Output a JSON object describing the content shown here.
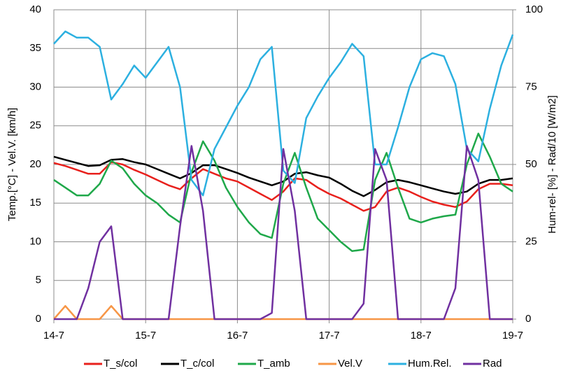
{
  "chart_data": {
    "type": "line",
    "xlabel": null,
    "ylabel": "Temp.[°C] - Vel.V. [km/h]",
    "y2label": "Hum-rel- [%] - Rad/10 [W/m2]",
    "x": [
      0,
      0.125,
      0.25,
      0.375,
      0.5,
      0.625,
      0.75,
      0.875,
      1,
      1.125,
      1.25,
      1.375,
      1.5,
      1.625,
      1.75,
      1.875,
      2,
      2.125,
      2.25,
      2.375,
      2.5,
      2.625,
      2.75,
      2.875,
      3,
      3.125,
      3.25,
      3.375,
      3.5,
      3.625,
      3.75,
      3.875,
      4,
      4.125,
      4.25,
      4.375,
      4.5,
      4.625,
      4.75,
      4.875,
      5
    ],
    "xlim": [
      0,
      5
    ],
    "xticks": [
      {
        "value": 0,
        "label": "14-7"
      },
      {
        "value": 1,
        "label": "15-7"
      },
      {
        "value": 2,
        "label": "16-7"
      },
      {
        "value": 3,
        "label": "17-7"
      },
      {
        "value": 4,
        "label": "18-7"
      },
      {
        "value": 5,
        "label": "19-7"
      }
    ],
    "ylim": [
      0,
      40
    ],
    "yticks": [
      0,
      5,
      10,
      15,
      20,
      25,
      30,
      35,
      40
    ],
    "y2lim": [
      0,
      100
    ],
    "y2ticks": [
      0,
      25,
      50,
      75,
      100
    ],
    "grid": true,
    "legend": "bottom",
    "series": [
      {
        "name": "T_s/col",
        "color": "#e8201c",
        "values": [
          20.2,
          19.8,
          19.3,
          18.8,
          18.8,
          20.3,
          20.0,
          19.3,
          18.7,
          18.0,
          17.3,
          16.8,
          18.2,
          19.4,
          18.8,
          18.2,
          17.8,
          17.0,
          16.2,
          15.4,
          16.5,
          18.2,
          18.0,
          17.0,
          16.2,
          15.6,
          14.8,
          14.0,
          14.5,
          16.5,
          17.0,
          16.5,
          15.8,
          15.2,
          14.8,
          14.5,
          15.2,
          16.8,
          17.5,
          17.5,
          17.3
        ]
      },
      {
        "name": "T_c/col",
        "color": "#000000",
        "values": [
          21.0,
          20.6,
          20.2,
          19.8,
          19.9,
          20.6,
          20.7,
          20.3,
          20.0,
          19.4,
          18.8,
          18.2,
          18.9,
          19.9,
          19.9,
          19.4,
          18.9,
          18.3,
          17.8,
          17.3,
          17.8,
          18.8,
          19.0,
          18.6,
          18.3,
          17.5,
          16.6,
          15.9,
          16.7,
          17.7,
          18.0,
          17.7,
          17.3,
          16.9,
          16.5,
          16.2,
          16.5,
          17.5,
          18.0,
          18.0,
          18.2
        ]
      },
      {
        "name": "T_amb",
        "color": "#1fa84a",
        "values": [
          18.0,
          17.0,
          16.0,
          16.0,
          17.5,
          20.5,
          19.5,
          17.5,
          16.0,
          15.0,
          13.5,
          12.5,
          19.0,
          23.0,
          20.5,
          17.0,
          14.5,
          12.5,
          11.0,
          10.5,
          17.5,
          21.5,
          17.0,
          13.0,
          11.5,
          10.0,
          8.8,
          9.0,
          18.0,
          21.5,
          17.0,
          13.0,
          12.5,
          13.0,
          13.3,
          13.5,
          20.0,
          24.0,
          21.0,
          17.5,
          16.5
        ]
      },
      {
        "name": "Vel.V",
        "color": "#f79646",
        "values": [
          0,
          1.7,
          0,
          0,
          0,
          1.7,
          0,
          0,
          0,
          0,
          0,
          0,
          0,
          0,
          0,
          0,
          0,
          0,
          0,
          0,
          0,
          0,
          0,
          0,
          0,
          0,
          0,
          0,
          0,
          0,
          0,
          0,
          0,
          0,
          0,
          0,
          0,
          0,
          0,
          0,
          0
        ]
      },
      {
        "name": "Hum.Rel.",
        "color": "#2cb0e0",
        "axis": "y2",
        "values": [
          89,
          93,
          91,
          91,
          88,
          71,
          76,
          82,
          78,
          83,
          88,
          75,
          45,
          40,
          55,
          62,
          69,
          75,
          84,
          88,
          48,
          44,
          65,
          72,
          78,
          83,
          89,
          85,
          50,
          50,
          62,
          75,
          84,
          86,
          85,
          76,
          55,
          51,
          68,
          82,
          92
        ]
      },
      {
        "name": "Rad",
        "color": "#7030a0",
        "axis": "y2",
        "values": [
          0,
          0,
          0,
          10,
          25,
          30,
          0,
          0,
          0,
          0,
          0,
          30,
          56,
          35,
          0,
          0,
          0,
          0,
          0,
          2,
          55,
          35,
          0,
          0,
          0,
          0,
          0,
          5,
          55,
          45,
          0,
          0,
          0,
          0,
          0,
          10,
          56,
          45,
          0,
          0,
          0
        ]
      }
    ]
  }
}
